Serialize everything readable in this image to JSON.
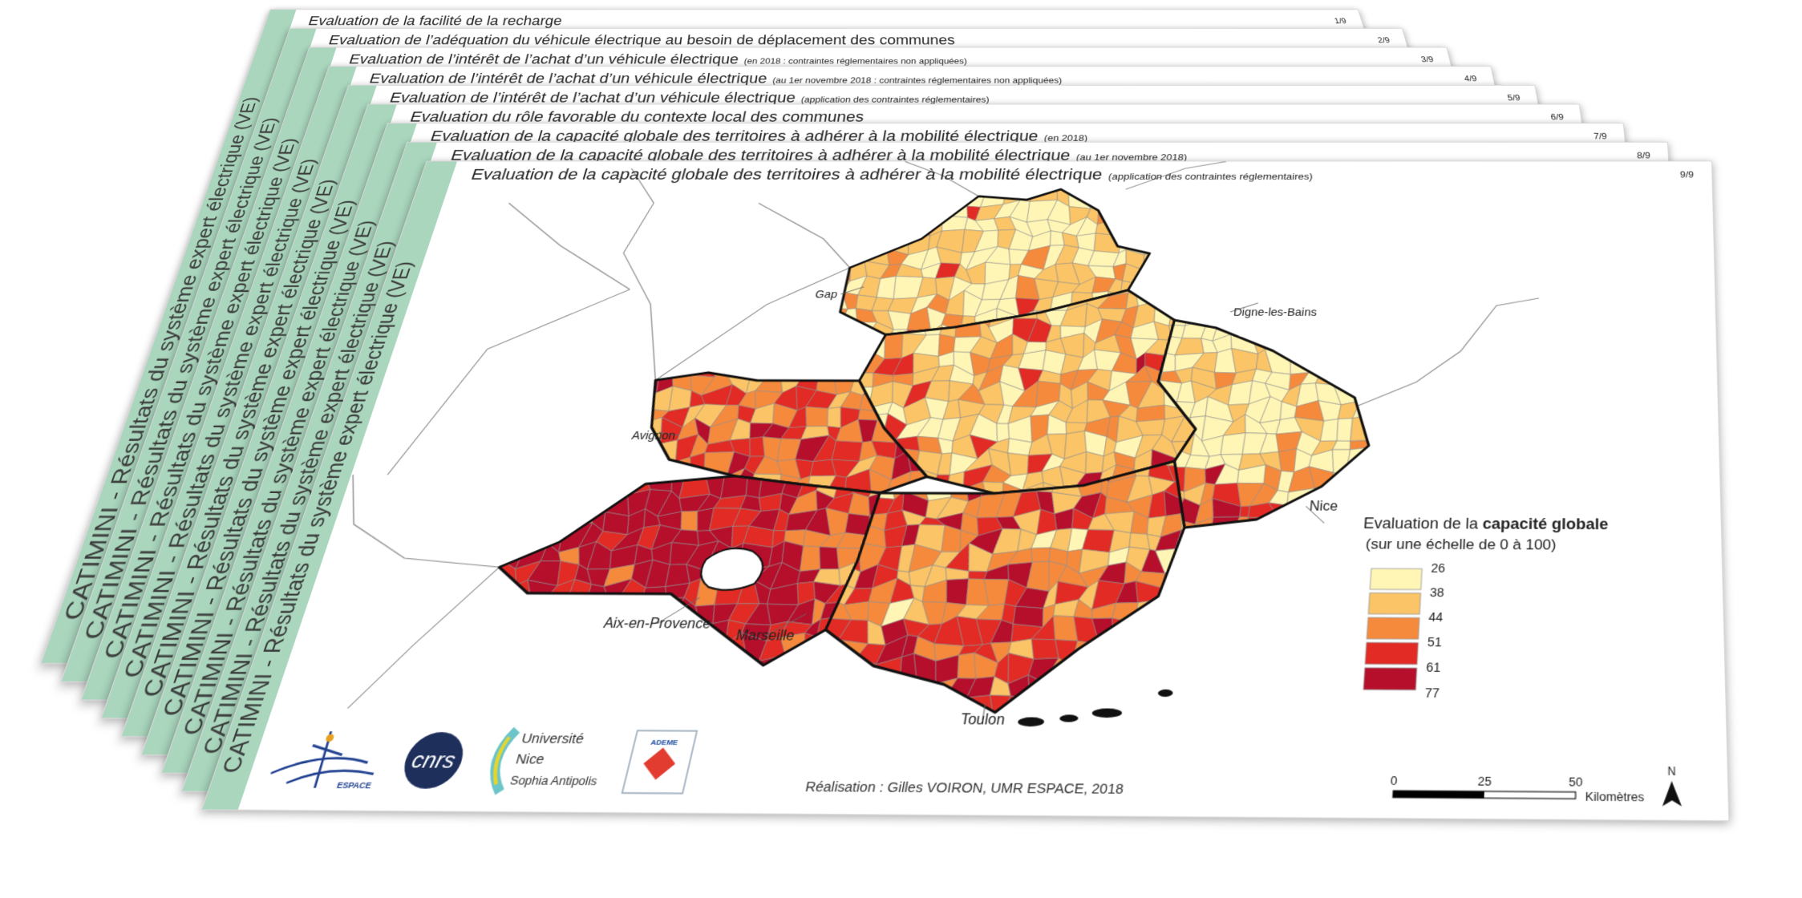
{
  "sidebar": "CATIMINI - Résultats du système expert électrique (VE)",
  "slides": [
    {
      "title": "Evaluation de la facilité de la recharge",
      "page": "1/9"
    },
    {
      "title": "Evaluation de l’adéquation du véhicule électrique au besoin de déplacement des communes",
      "page": "2/9"
    },
    {
      "title": "Evaluation de l’intérêt de l’achat d’un véhicule électrique",
      "subtitle": "(en 2018 : contraintes réglementaires non appliquées)",
      "page": "3/9"
    },
    {
      "title": "Evaluation de l’intérêt de l’achat d’un véhicule électrique",
      "subtitle": "(au 1er novembre 2018 : contraintes réglementaires non appliquées)",
      "page": "4/9"
    },
    {
      "title": "Evaluation de l’intérêt de l’achat d’un véhicule électrique",
      "subtitle": "(application des contraintes réglementaires)",
      "page": "5/9"
    },
    {
      "title": "Evaluation du rôle favorable du contexte local des communes",
      "page": "6/9"
    },
    {
      "title": "Evaluation de la capacité globale des territoires à adhérer à la mobilité électrique",
      "subtitle": "(en 2018)",
      "page": "7/9"
    },
    {
      "title": "Evaluation de la capacité globale des territoires à adhérer à la mobilité électrique",
      "subtitle": "(au 1er novembre 2018)",
      "page": "8/9"
    },
    {
      "title": "Evaluation de la capacité globale des territoires à adhérer à la mobilité électrique",
      "subtitle": "(application des contraintes réglementaires)",
      "page": "9/9"
    }
  ],
  "map": {
    "cities": [
      "Gap",
      "Digne-les-Bains",
      "Avignon",
      "Nice",
      "Aix-en-Provence",
      "Marseille",
      "Toulon"
    ],
    "legend": {
      "title_pre": "Evaluation de la ",
      "title_bold": "capacité globale",
      "subtitle": "(sur une échelle de 0 à 100)",
      "breaks": [
        26,
        38,
        44,
        51,
        61,
        77
      ],
      "colors": [
        "#fff5b5",
        "#fbc466",
        "#f68a3c",
        "#e12b24",
        "#b50f2b"
      ]
    },
    "scale": {
      "ticks": [
        0,
        25,
        50
      ],
      "unit": "Kilomètres"
    },
    "north": "N",
    "credit": "Réalisation : Gilles VOIRON, UMR ESPACE, 2018",
    "logos": [
      "ESPACE",
      "cnrs",
      "Université",
      "Nice",
      "Sophia Antipolis",
      "ADEME"
    ]
  }
}
